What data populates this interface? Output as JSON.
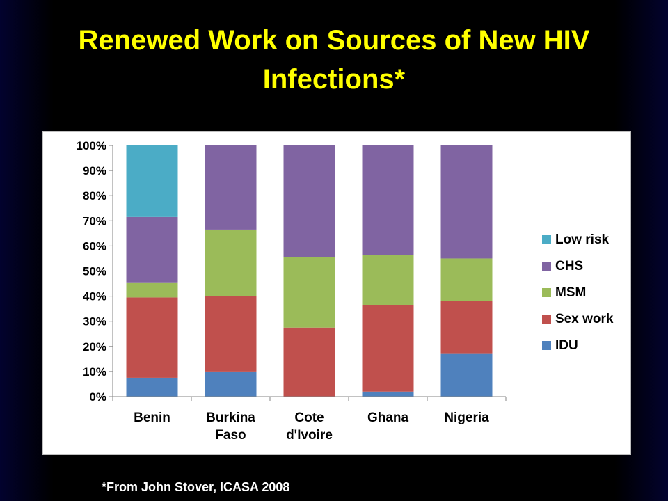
{
  "slide": {
    "title": "Renewed Work on Sources of New HIV Infections*",
    "footnote": "*From John Stover, ICASA 2008"
  },
  "chart_data": {
    "type": "bar",
    "stacked": true,
    "percent_stacked": true,
    "title": "",
    "xlabel": "",
    "ylabel": "",
    "ylim": [
      0,
      100
    ],
    "y_ticks": [
      "0%",
      "10%",
      "20%",
      "30%",
      "40%",
      "50%",
      "60%",
      "70%",
      "80%",
      "90%",
      "100%"
    ],
    "categories": [
      [
        "Benin"
      ],
      [
        "Burkina",
        "Faso"
      ],
      [
        "Cote",
        "d'Ivoire"
      ],
      [
        "Ghana"
      ],
      [
        "Nigeria"
      ]
    ],
    "series": [
      {
        "name": "IDU",
        "color": "#4f81bd",
        "values": [
          7.5,
          10,
          0,
          2,
          17
        ]
      },
      {
        "name": "Sex work",
        "color": "#c0504d",
        "values": [
          32,
          30,
          27.5,
          34.5,
          21
        ]
      },
      {
        "name": "MSM",
        "color": "#9bbb59",
        "values": [
          6,
          26.5,
          28,
          20,
          17
        ]
      },
      {
        "name": "CHS",
        "color": "#8064a2",
        "values": [
          26,
          33.5,
          44.5,
          43.5,
          45
        ]
      },
      {
        "name": "Low risk",
        "color": "#4bacc6",
        "values": [
          28.5,
          0,
          0,
          0,
          0
        ]
      }
    ],
    "legend": {
      "position": "right",
      "order": [
        "Low risk",
        "CHS",
        "MSM",
        "Sex work",
        "IDU"
      ]
    },
    "grid": false
  }
}
